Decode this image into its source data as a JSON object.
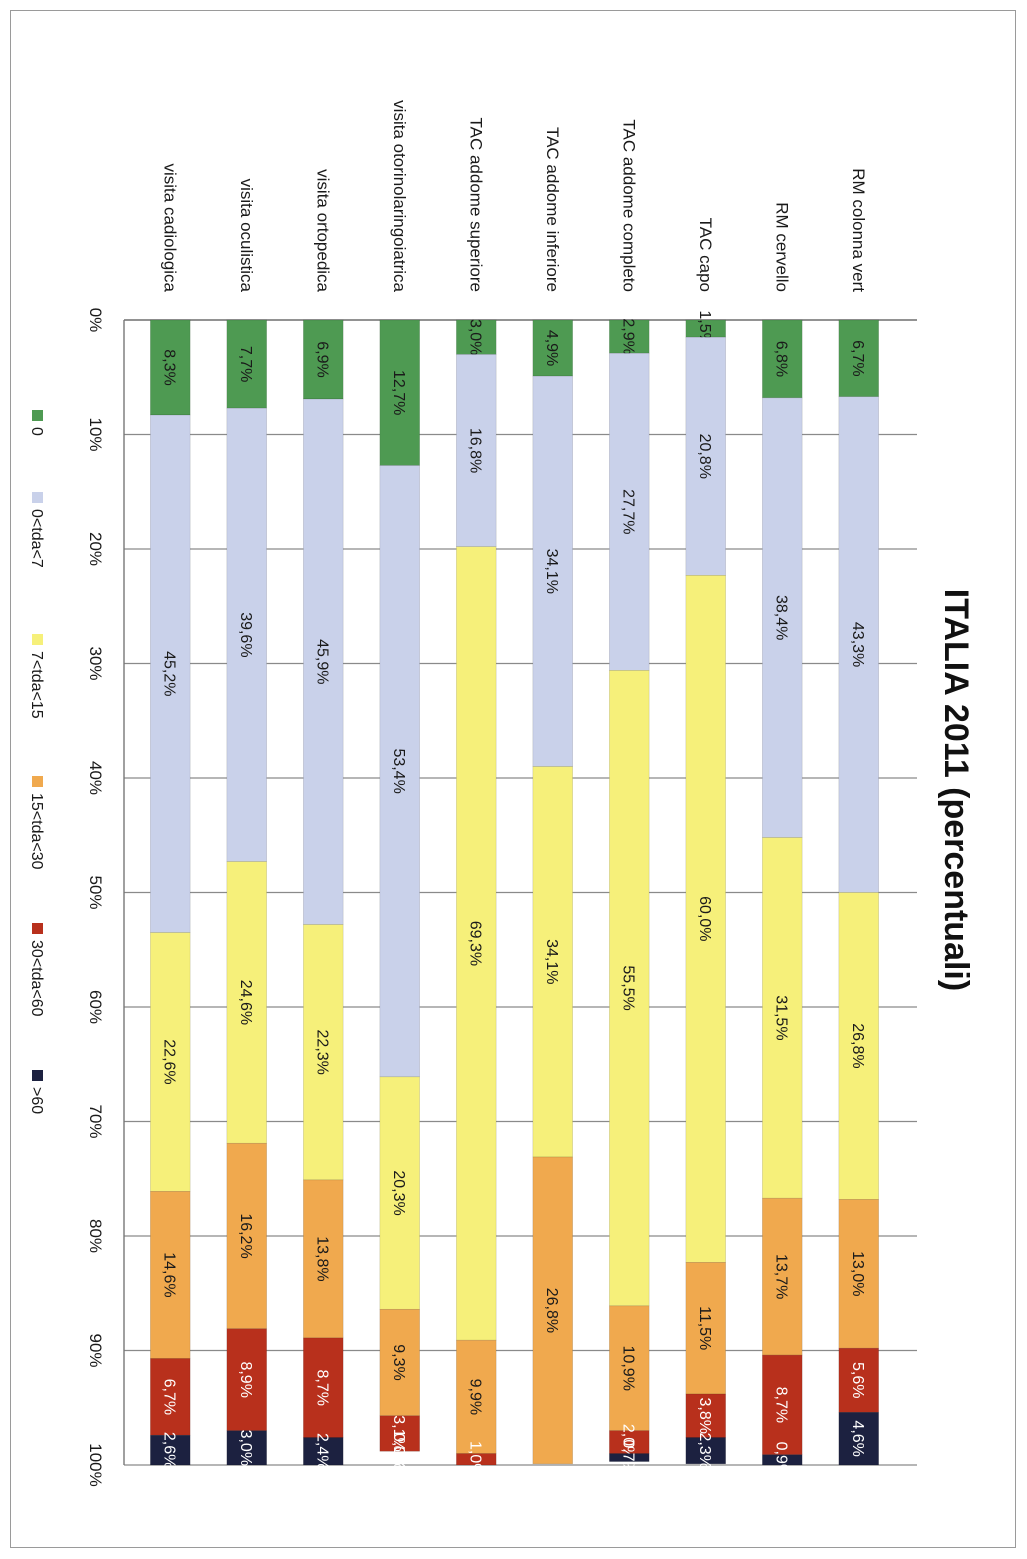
{
  "page_title": "ITALIA 2011 (percentuali)",
  "subtitle": "",
  "chart_data": {
    "type": "bar",
    "stacked": "percent",
    "orientation": "horizontal",
    "title": "ITALIA 2011 (percentuali)",
    "xlim": [
      0,
      100
    ],
    "x_ticks": [
      "0%",
      "10%",
      "20%",
      "30%",
      "40%",
      "50%",
      "60%",
      "70%",
      "80%",
      "90%",
      "100%"
    ],
    "grid": true,
    "legend_position": "bottom",
    "categories": [
      "RM colonna vert",
      "RM cervello",
      "TAC capo",
      "TAC addome completo",
      "TAC addome inferiore",
      "TAC addome superiore",
      "visita otorinolaringoiatrica",
      "visita ortopedica",
      "visita oculistica",
      "visita cadiologica"
    ],
    "series": [
      {
        "name": "0",
        "color": "#4e9a52",
        "values": [
          6.7,
          6.8,
          1.5,
          2.9,
          4.9,
          3.0,
          12.7,
          6.9,
          7.7,
          8.3
        ],
        "labels": [
          "6,7%",
          "6,8%",
          "1,5%",
          "2,9%",
          "4,9%",
          "3,0%",
          "12,7%",
          "6,9%",
          "7,7%",
          "8,3%"
        ]
      },
      {
        "name": "0<tda<7",
        "color": "#c9d1ea",
        "values": [
          43.3,
          38.4,
          20.8,
          27.7,
          34.1,
          16.8,
          53.4,
          45.9,
          39.6,
          45.2
        ],
        "labels": [
          "43,3%",
          "38,4%",
          "20,8%",
          "27,7%",
          "34,1%",
          "16,8%",
          "53,4%",
          "45,9%",
          "39,6%",
          "45,2%"
        ]
      },
      {
        "name": "7<tda<15",
        "color": "#f6f07a",
        "values": [
          26.8,
          31.5,
          60.0,
          55.5,
          34.1,
          69.3,
          20.3,
          22.3,
          24.6,
          22.6
        ],
        "labels": [
          "26,8%",
          "31,5%",
          "60,0%",
          "55,5%",
          "34,1%",
          "69,3%",
          "20,3%",
          "22,3%",
          "24,6%",
          "22,6%"
        ]
      },
      {
        "name": "15<tda<30",
        "color": "#f0a94e",
        "values": [
          13.0,
          13.7,
          11.5,
          10.9,
          26.8,
          9.9,
          9.3,
          13.8,
          16.2,
          14.6
        ],
        "labels": [
          "13,0%",
          "13,7%",
          "11,5%",
          "10,9%",
          "26,8%",
          "9,9%",
          "9,3%",
          "13,8%",
          "16,2%",
          "14,6%"
        ]
      },
      {
        "name": "30<tda<60",
        "color": "#b8301c",
        "values": [
          5.6,
          8.7,
          3.8,
          2.0,
          0.0,
          1.0,
          3.1,
          8.7,
          8.9,
          6.7
        ],
        "labels": [
          "5,6%",
          "8,7%",
          "3,8%",
          "2,0%",
          "",
          "1,0%",
          "3,1%",
          "8,7%",
          "8,9%",
          "6,7%"
        ]
      },
      {
        "name": ">60",
        "color": "#1c2140",
        "values": [
          4.6,
          0.9,
          2.3,
          0.7,
          0.0,
          0.0,
          0.0,
          2.4,
          3.0,
          2.6
        ],
        "labels": [
          "4,6%",
          "0,9%",
          "2,3%",
          "0,7%",
          "",
          "",
          "0,0%",
          "2,4%",
          "3,0%",
          "2,6%"
        ]
      }
    ]
  }
}
